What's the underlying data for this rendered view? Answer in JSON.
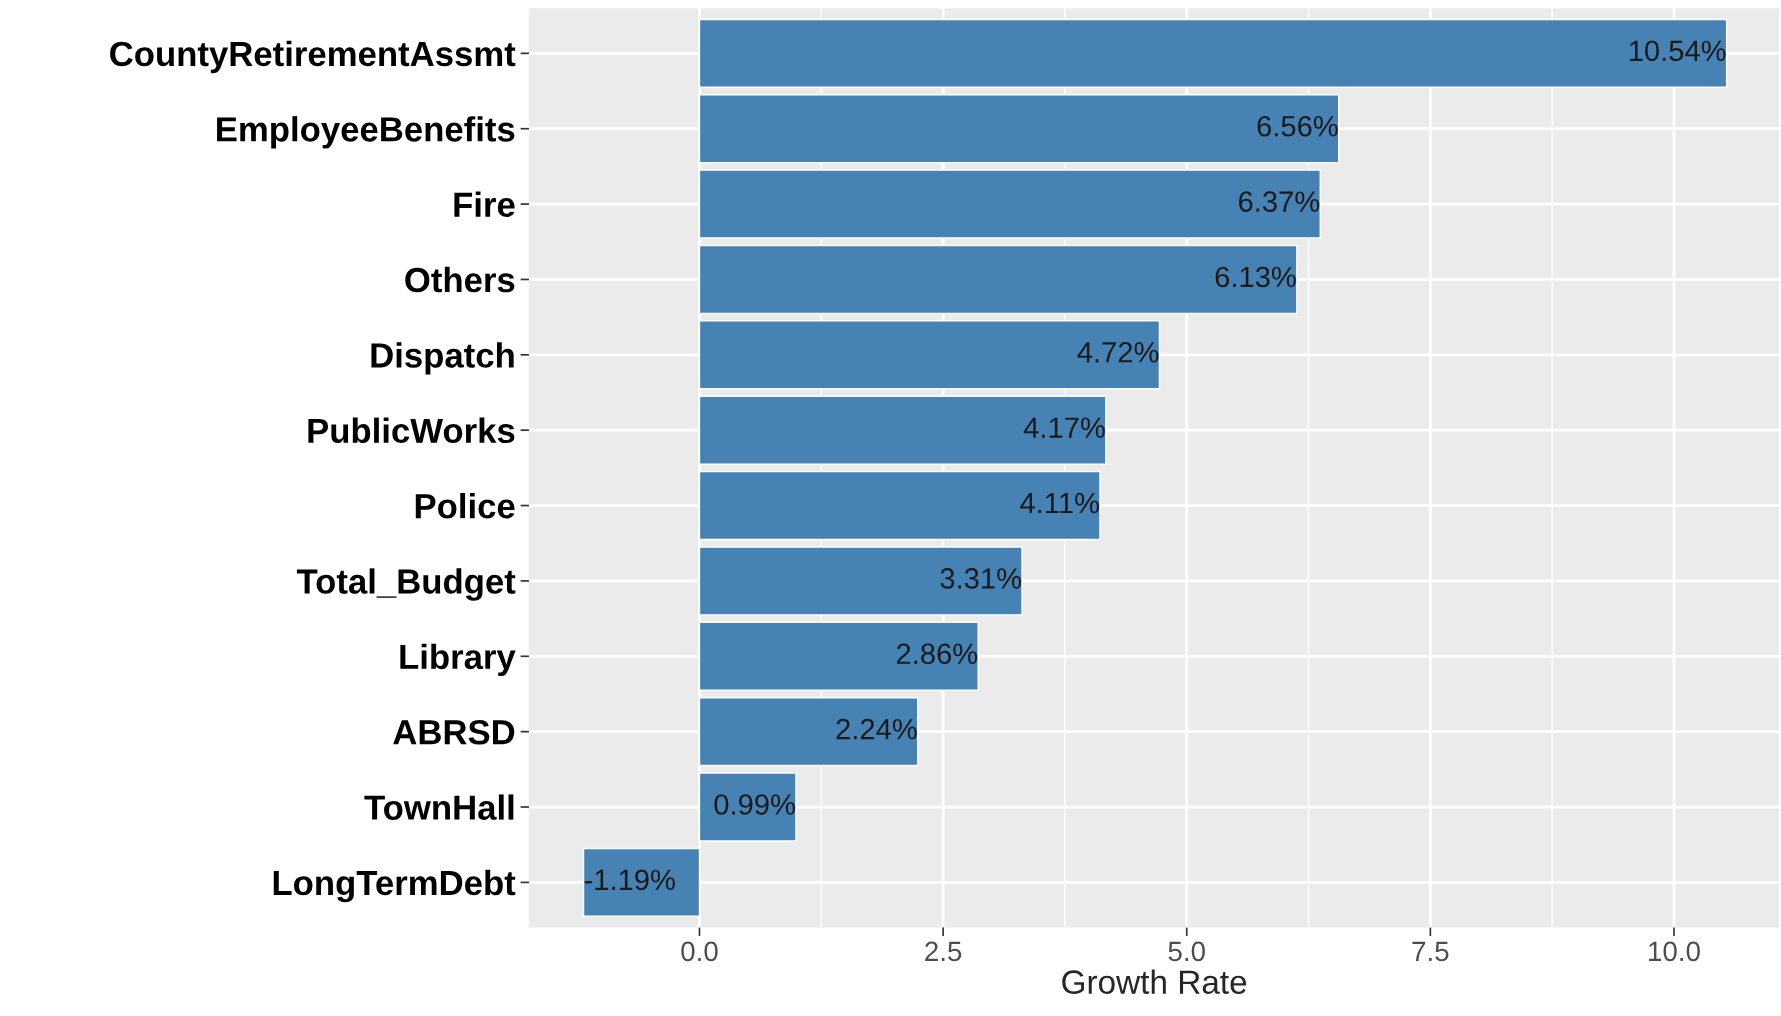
{
  "chart_data": {
    "type": "bar",
    "orientation": "horizontal",
    "xlabel": "Growth Rate",
    "categories": [
      "CountyRetirementAssmt",
      "EmployeeBenefits",
      "Fire",
      "Others",
      "Dispatch",
      "PublicWorks",
      "Police",
      "Total_Budget",
      "Library",
      "ABRSD",
      "TownHall",
      "LongTermDebt"
    ],
    "values": [
      10.54,
      6.56,
      6.37,
      6.13,
      4.72,
      4.17,
      4.11,
      3.31,
      2.86,
      2.24,
      0.99,
      -1.19
    ],
    "value_labels": [
      "10.54%",
      "6.56%",
      "6.37%",
      "6.13%",
      "4.72%",
      "4.17%",
      "4.11%",
      "3.31%",
      "2.86%",
      "2.24%",
      "0.99%",
      "-1.19%"
    ],
    "color": "#4682b4",
    "xlim": [
      -1.75,
      11.08
    ],
    "xticks": [
      {
        "value": 0,
        "label": "0.0"
      },
      {
        "value": 2.5,
        "label": "2.5"
      },
      {
        "value": 5,
        "label": "5.0"
      },
      {
        "value": 7.5,
        "label": "7.5"
      },
      {
        "value": 10,
        "label": "10.0"
      }
    ],
    "grid": true,
    "legend": false
  }
}
